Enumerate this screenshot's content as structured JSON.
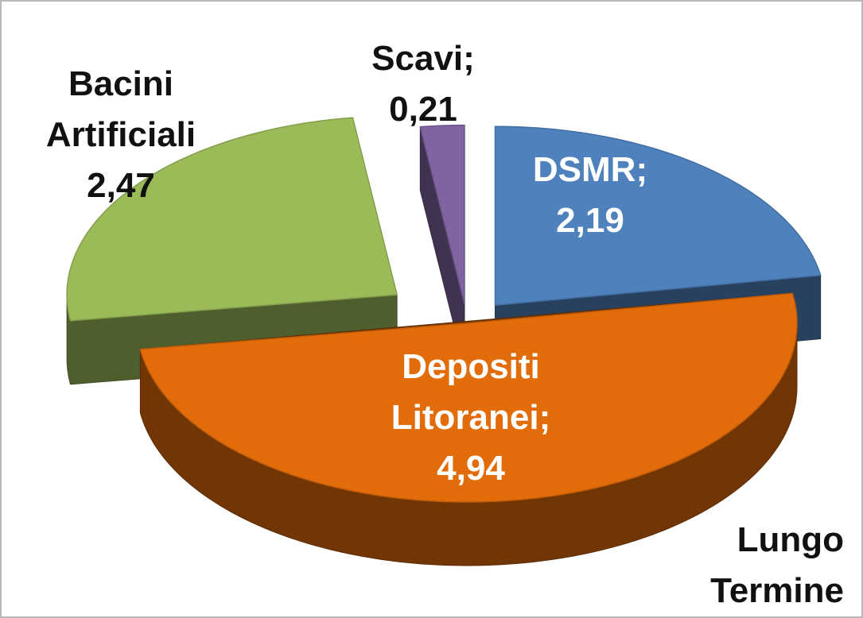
{
  "chart_data": {
    "type": "pie3d",
    "categories": [
      "DSMR;",
      "Depositi Litoranei;",
      "Bacini Artificiali",
      "Scavi;"
    ],
    "values": [
      2.19,
      4.94,
      2.47,
      0.21
    ],
    "value_labels": [
      "2,19",
      "4,94",
      "2,47",
      "0,21"
    ],
    "colors": [
      "#4f81bd",
      "#e36c0a",
      "#9bbb59",
      "#8064a2"
    ],
    "annotation": "Lungo Termine"
  }
}
